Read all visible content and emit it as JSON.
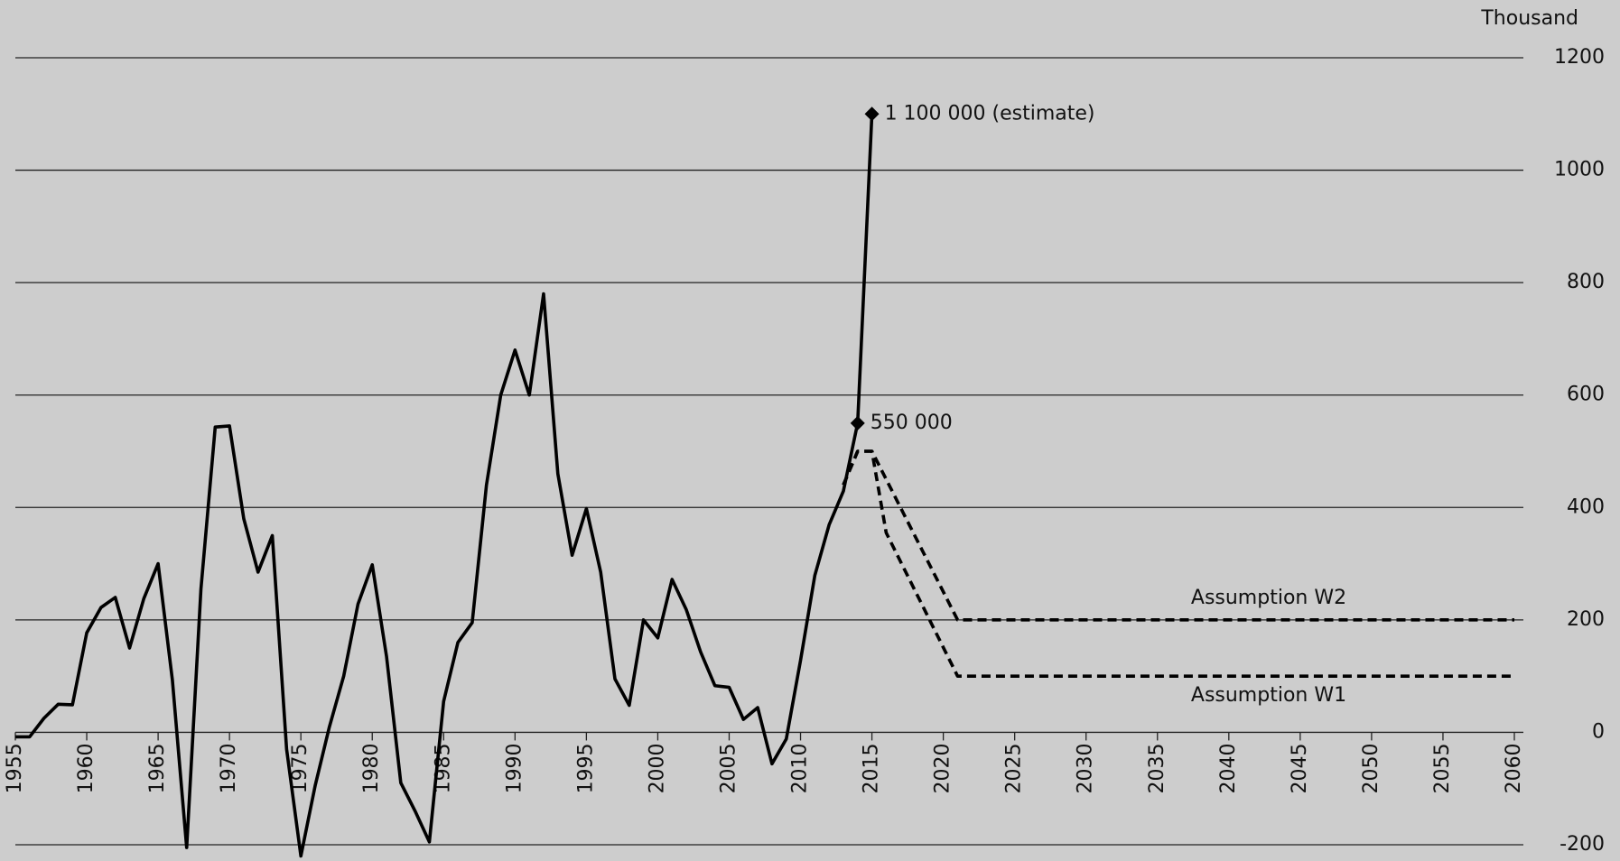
{
  "chart_data": {
    "type": "line",
    "y_unit": "Thousand",
    "xlim": [
      1955,
      2060
    ],
    "xticks": [
      1955,
      1960,
      1965,
      1970,
      1975,
      1980,
      1985,
      1990,
      1995,
      2000,
      2005,
      2010,
      2015,
      2020,
      2025,
      2030,
      2035,
      2040,
      2045,
      2050,
      2055,
      2060
    ],
    "ylim": [
      -200,
      1200
    ],
    "yticks": [
      -200,
      0,
      200,
      400,
      600,
      800,
      1000,
      1200
    ],
    "grid": true,
    "series": [
      {
        "color": "#000000",
        "dashed": false,
        "x": [
          1955,
          1956,
          1957,
          1958,
          1959,
          1960,
          1961,
          1962,
          1963,
          1964,
          1965,
          1966,
          1967,
          1968,
          1969,
          1970,
          1971,
          1972,
          1973,
          1974,
          1975,
          1976,
          1977,
          1978,
          1979,
          1980,
          1981,
          1982,
          1983,
          1984,
          1985,
          1986,
          1987,
          1988,
          1989,
          1990,
          1991,
          1992,
          1993,
          1994,
          1995,
          1996,
          1997,
          1998,
          1999,
          2000,
          2001,
          2002,
          2003,
          2004,
          2005,
          2006,
          2007,
          2008,
          2009,
          2010,
          2011,
          2012,
          2013,
          2014,
          2015
        ],
        "values": [
          -8,
          -8,
          25,
          50,
          49,
          177,
          222,
          240,
          150,
          238,
          300,
          93,
          -205,
          255,
          543,
          545,
          380,
          285,
          350,
          -30,
          -220,
          -95,
          10,
          100,
          228,
          298,
          135,
          -90,
          -140,
          -195,
          55,
          160,
          195,
          440,
          600,
          680,
          600,
          780,
          460,
          315,
          398,
          285,
          95,
          48,
          200,
          168,
          272,
          218,
          143,
          83,
          80,
          23,
          44,
          -56,
          -12,
          128,
          279,
          369,
          429,
          550,
          1100
        ],
        "value_labels": [
          null,
          null,
          null,
          null,
          null,
          null,
          null,
          null,
          null,
          null,
          null,
          null,
          null,
          null,
          null,
          null,
          null,
          null,
          null,
          null,
          null,
          null,
          null,
          null,
          null,
          null,
          null,
          null,
          null,
          null,
          null,
          null,
          null,
          null,
          null,
          null,
          null,
          null,
          null,
          null,
          null,
          null,
          null,
          null,
          null,
          null,
          null,
          null,
          null,
          null,
          null,
          null,
          null,
          null,
          null,
          null,
          null,
          null,
          null,
          "550 000",
          "1 100 000 (estimate)"
        ]
      },
      {
        "name": "Assumption W2",
        "color": "#000000",
        "dashed": true,
        "x": [
          2013,
          2014,
          2015,
          2021,
          2060
        ],
        "values": [
          440,
          500,
          500,
          200,
          200
        ]
      },
      {
        "name": "Assumption W1",
        "color": "#000000",
        "dashed": true,
        "x": [
          2013,
          2014,
          2015,
          2016,
          2021,
          2060
        ],
        "values": [
          440,
          500,
          500,
          355,
          100,
          100
        ]
      }
    ]
  }
}
